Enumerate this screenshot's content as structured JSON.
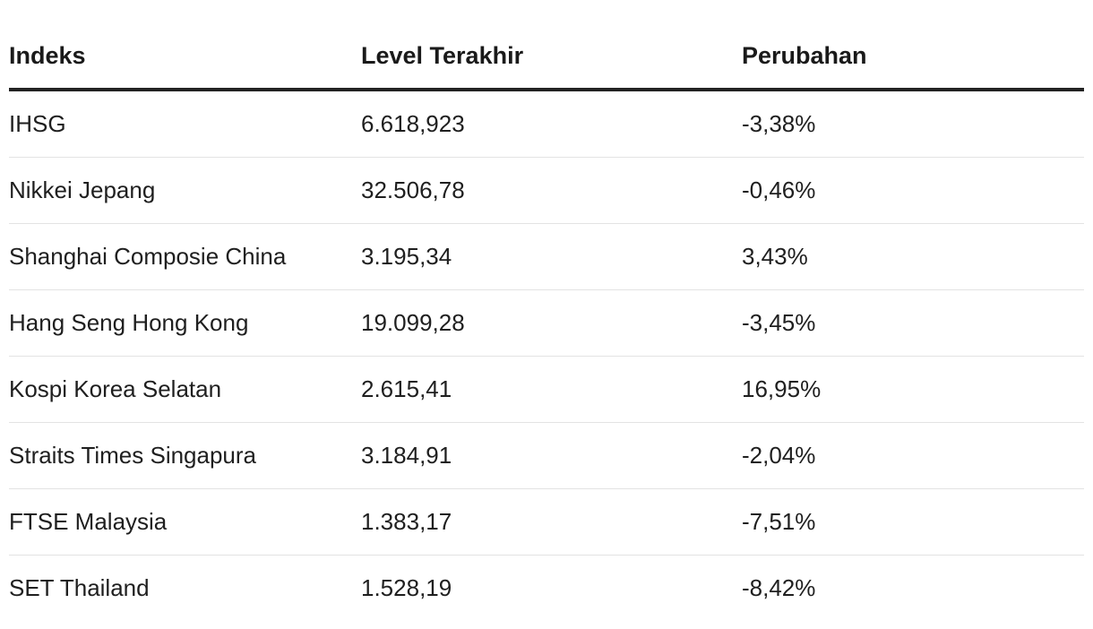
{
  "table": {
    "headers": [
      "Indeks",
      "Level Terakhir",
      "Perubahan"
    ],
    "rows": [
      [
        "IHSG",
        "6.618,923",
        "-3,38%"
      ],
      [
        "Nikkei Jepang",
        "32.506,78",
        "-0,46%"
      ],
      [
        "Shanghai Composie China",
        "3.195,34",
        "3,43%"
      ],
      [
        "Hang Seng Hong Kong",
        "19.099,28",
        "-3,45%"
      ],
      [
        "Kospi Korea Selatan",
        "2.615,41",
        "16,95%"
      ],
      [
        "Straits Times Singapura",
        "3.184,91",
        "-2,04%"
      ],
      [
        "FTSE Malaysia",
        "1.383,17",
        "-7,51%"
      ],
      [
        "SET Thailand",
        "1.528,19",
        "-8,42%"
      ]
    ]
  }
}
